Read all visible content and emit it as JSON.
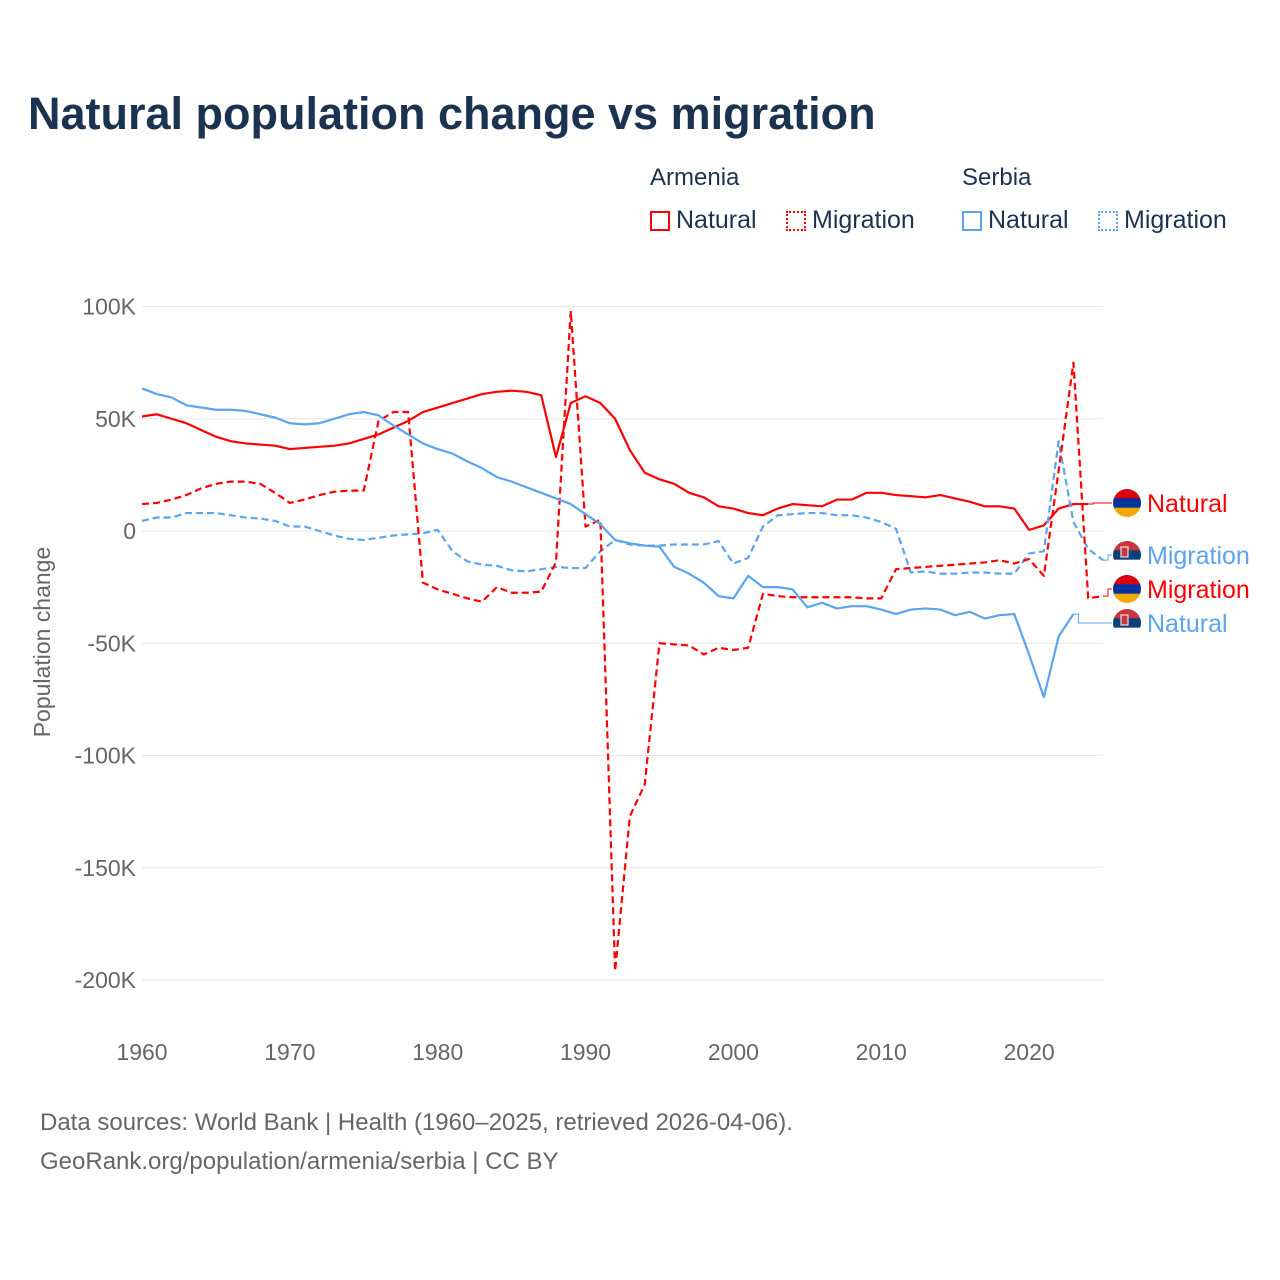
{
  "title": "Natural population change vs migration",
  "legend": {
    "groups": [
      {
        "country": "Armenia",
        "items": [
          {
            "label": "Natural",
            "style": "solid"
          },
          {
            "label": "Migration",
            "style": "dotted"
          }
        ],
        "color": "#ff0000"
      },
      {
        "country": "Serbia",
        "items": [
          {
            "label": "Natural",
            "style": "solid"
          },
          {
            "label": "Migration",
            "style": "dotted"
          }
        ],
        "color": "#5ba4ee"
      }
    ]
  },
  "footer": {
    "line1": "Data sources: World Bank | Health (1960–2025, retrieved 2026-04-06).",
    "line2": "GeoRank.org/population/armenia/serbia | CC BY"
  },
  "chart_data": {
    "type": "line",
    "ylabel": "Population change",
    "xlim": [
      1960,
      2025
    ],
    "ylim": [
      -200000,
      100000
    ],
    "yticks": [
      100000,
      50000,
      0,
      -50000,
      -100000,
      -150000,
      -200000
    ],
    "ytick_labels": [
      "100K",
      "50K",
      "0",
      "-50K",
      "-100K",
      "-150K",
      "-200K"
    ],
    "xticks": [
      1960,
      1970,
      1980,
      1990,
      2000,
      2010,
      2020
    ],
    "xtick_labels": [
      "1960",
      "1970",
      "1980",
      "1990",
      "2000",
      "2010",
      "2020"
    ],
    "grid": true,
    "start_year": 1960,
    "series": [
      {
        "name": "Armenia Natural",
        "end_label": "Natural",
        "color": "#ff0000",
        "dash": false,
        "flag": "armenia",
        "values_k": [
          51,
          52,
          50,
          48,
          45,
          42,
          40,
          39,
          38.5,
          38,
          36.5,
          37,
          37.5,
          38,
          39,
          41,
          43,
          46,
          49,
          53,
          55,
          57,
          59,
          61,
          62,
          62.5,
          62,
          60.5,
          33,
          57,
          60,
          57,
          50,
          36,
          26,
          23,
          21,
          17,
          15,
          11,
          10,
          8,
          7,
          10,
          12,
          11.5,
          11,
          14,
          14,
          17,
          17,
          16,
          15.5,
          15,
          16,
          14.5,
          13,
          11,
          11,
          10,
          0.5,
          2.5,
          10,
          12,
          12
        ]
      },
      {
        "name": "Serbia Migration",
        "end_label": "Migration",
        "color": "#5ba4ee",
        "dash": true,
        "flag": "serbia",
        "values_k": [
          4.5,
          6,
          6,
          8,
          8,
          8,
          7,
          6,
          5.5,
          4.5,
          2,
          2,
          0,
          -2,
          -3.5,
          -4,
          -3,
          -2,
          -1.5,
          -1,
          0.5,
          -9,
          -13.5,
          -15,
          -15.5,
          -17.5,
          -18,
          -17,
          -16,
          -16.5,
          -16.5,
          -9,
          -4,
          -6,
          -6.5,
          -6.5,
          -6,
          -6,
          -6,
          -4.5,
          -14.5,
          -12,
          2,
          7,
          7.5,
          8,
          8,
          7,
          7,
          6,
          4,
          1,
          -18.5,
          -18,
          -19,
          -19,
          -18.5,
          -18.5,
          -19,
          -19,
          -10,
          -9,
          40,
          4,
          -8,
          -13
        ]
      },
      {
        "name": "Armenia Migration",
        "end_label": "Migration",
        "color": "#ff0000",
        "dash": true,
        "flag": "armenia",
        "values_k": [
          12,
          12.5,
          14,
          16,
          19,
          21,
          22,
          22,
          21,
          17,
          12.5,
          14,
          16,
          17.5,
          18,
          18,
          49,
          53,
          53,
          -23,
          -26,
          -28,
          -30,
          -31.5,
          -25,
          -27.5,
          -27.5,
          -27,
          -14,
          98,
          2,
          5,
          -196,
          -127,
          -113,
          -50,
          -50.5,
          -51,
          -55,
          -52,
          -53,
          -52,
          -28,
          -29,
          -29.5,
          -29.5,
          -29.5,
          -29.5,
          -29.5,
          -30,
          -30,
          -17,
          -16.5,
          -16,
          -15.5,
          -15,
          -14.5,
          -14,
          -13,
          -14.5,
          -12.5,
          -20,
          27,
          75,
          -30,
          -29
        ]
      },
      {
        "name": "Serbia Natural",
        "end_label": "Natural",
        "color": "#5ba4ee",
        "dash": false,
        "flag": "serbia",
        "values_k": [
          63.5,
          61,
          59.5,
          56,
          55,
          54,
          54,
          53.5,
          52,
          50.5,
          48,
          47.5,
          48,
          50,
          52,
          53,
          51.5,
          47,
          43,
          39,
          36.5,
          34.5,
          31,
          28,
          24,
          22,
          19.5,
          17,
          14.5,
          12,
          7.5,
          3,
          -4,
          -5.5,
          -6.5,
          -7,
          -16,
          -19,
          -23,
          -29,
          -30,
          -20,
          -25,
          -25,
          -26,
          -34,
          -32,
          -34.5,
          -33.5,
          -33.5,
          -35,
          -37,
          -35,
          -34.5,
          -35,
          -37.5,
          -36,
          -39,
          -37.5,
          -37,
          -55,
          -74,
          -47,
          -37
        ]
      }
    ]
  }
}
